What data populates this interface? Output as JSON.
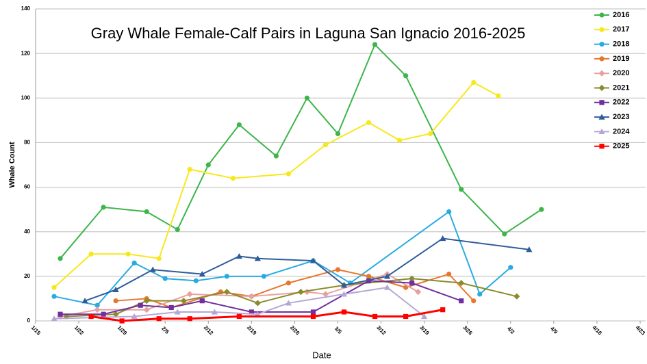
{
  "chart_data": {
    "type": "line",
    "title": "Gray Whale Female-Calf Pairs in Laguna San Ignacio 2016-2025",
    "x_label": "Date",
    "y_label": "Whale Count",
    "xlim": [
      "1/15",
      "4/23"
    ],
    "xticks": [
      "1/15",
      "1/22",
      "1/29",
      "2/5",
      "2/12",
      "2/19",
      "2/26",
      "3/5",
      "3/12",
      "3/19",
      "3/26",
      "4/2",
      "4/9",
      "4/16",
      "4/23"
    ],
    "ylim": [
      0,
      140
    ],
    "yticks": [
      0,
      20,
      40,
      60,
      80,
      100,
      120,
      140
    ],
    "grid": true,
    "legend": "upper right",
    "series": [
      {
        "name": "2016",
        "color": "#3cb54a",
        "marker": "circle",
        "x": [
          "1/19",
          "1/26",
          "2/2",
          "2/7",
          "2/12",
          "2/17",
          "2/23",
          "2/28",
          "3/5",
          "3/11",
          "3/16",
          "3/25",
          "4/1",
          "4/7"
        ],
        "values": [
          28,
          51,
          49,
          41,
          70,
          88,
          74,
          100,
          84,
          124,
          110,
          59,
          39,
          50
        ]
      },
      {
        "name": "2017",
        "color": "#f7e81c",
        "marker": "circle",
        "x": [
          "1/18",
          "1/24",
          "1/30",
          "2/4",
          "2/9",
          "2/16",
          "2/25",
          "3/3",
          "3/10",
          "3/15",
          "3/20",
          "3/27",
          "3/31"
        ],
        "values": [
          15,
          30,
          30,
          28,
          68,
          64,
          66,
          79,
          89,
          81,
          84,
          107,
          101
        ]
      },
      {
        "name": "2018",
        "color": "#29abe2",
        "marker": "circle",
        "x": [
          "1/18",
          "1/25",
          "1/31",
          "2/5",
          "2/10",
          "2/15",
          "2/21",
          "3/1",
          "3/7",
          "3/23",
          "3/28",
          "4/2"
        ],
        "values": [
          11,
          7,
          26,
          19,
          18,
          20,
          20,
          27,
          17,
          49,
          12,
          24
        ]
      },
      {
        "name": "2019",
        "color": "#e8772e",
        "marker": "circle",
        "x": [
          "1/28",
          "2/2",
          "2/6",
          "2/14",
          "2/19",
          "2/25",
          "3/5",
          "3/10",
          "3/16",
          "3/23",
          "3/27"
        ],
        "values": [
          9,
          10,
          6,
          13,
          11,
          17,
          23,
          20,
          15,
          21,
          9
        ]
      },
      {
        "name": "2020",
        "color": "#e8a0a0",
        "marker": "diamond",
        "x": [
          "1/19",
          "1/25",
          "2/2",
          "2/9",
          "2/19",
          "2/28",
          "3/3",
          "3/13",
          "3/18"
        ],
        "values": [
          2,
          5,
          5,
          12,
          11,
          13,
          12,
          21,
          13
        ]
      },
      {
        "name": "2021",
        "color": "#8b8b2e",
        "marker": "diamond",
        "x": [
          "1/20",
          "1/28",
          "2/2",
          "2/8",
          "2/15",
          "2/20",
          "2/27",
          "3/6",
          "3/17",
          "3/25",
          "4/3"
        ],
        "values": [
          2,
          3,
          9,
          9,
          13,
          8,
          13,
          16,
          19,
          17,
          11
        ]
      },
      {
        "name": "2022",
        "color": "#7030a0",
        "marker": "square",
        "x": [
          "1/19",
          "1/26",
          "2/1",
          "2/6",
          "2/11",
          "2/19",
          "3/1",
          "3/10",
          "3/17",
          "3/25"
        ],
        "values": [
          3,
          3,
          7,
          6,
          9,
          4,
          4,
          18,
          17,
          9
        ]
      },
      {
        "name": "2023",
        "color": "#2e5c9a",
        "marker": "triangle",
        "x": [
          "1/23",
          "1/28",
          "2/3",
          "2/11",
          "2/17",
          "2/20",
          "3/1",
          "3/6",
          "3/13",
          "3/22",
          "4/5"
        ],
        "values": [
          9,
          14,
          23,
          21,
          29,
          28,
          27,
          16,
          20,
          37,
          32
        ]
      },
      {
        "name": "2024",
        "color": "#b4a7d6",
        "marker": "triangle",
        "x": [
          "1/18",
          "1/31",
          "2/7",
          "2/13",
          "2/20",
          "2/25",
          "3/6",
          "3/13",
          "3/19"
        ],
        "values": [
          1,
          2,
          4,
          4,
          3,
          8,
          12,
          15,
          2
        ]
      },
      {
        "name": "2025",
        "color": "#ff0000",
        "marker": "square",
        "x": [
          "1/24",
          "1/29",
          "2/4",
          "2/9",
          "2/17",
          "3/1",
          "3/6",
          "3/11",
          "3/16",
          "3/22"
        ],
        "values": [
          2,
          0,
          1,
          1,
          2,
          2,
          4,
          2,
          2,
          5
        ]
      }
    ]
  }
}
